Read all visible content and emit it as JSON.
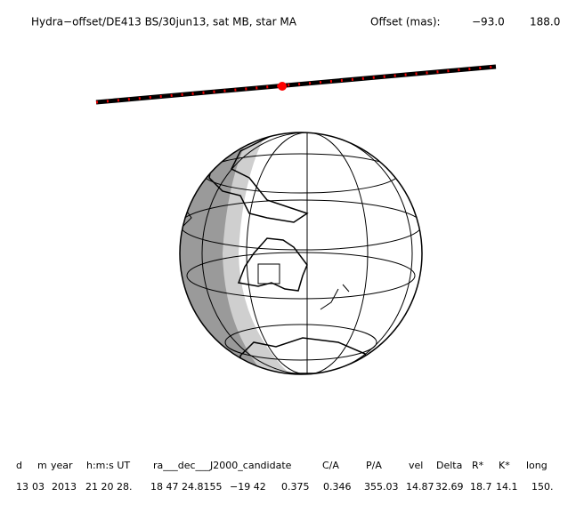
{
  "header": {
    "title": "Hydra−offset/DE413 BS/30jun13, sat MB, star MA",
    "offset_label": "Offset (mas):",
    "offset_values": [
      "−93.0",
      "188.0"
    ]
  },
  "footer": {
    "columns": [
      "d",
      "m",
      "year",
      "h:m:s UT",
      "ra___dec___J2000_candidate",
      "C/A",
      "P/A",
      "vel",
      "Delta",
      "R*",
      "K*",
      "long"
    ],
    "values": [
      "13",
      "03",
      "2013",
      "21 20 28.",
      "18 47 24.8155",
      "−19 42",
      "0.375",
      "0.346",
      "355.03",
      "14.87",
      "32.69",
      "18.7",
      "14.1",
      "150."
    ]
  }
}
